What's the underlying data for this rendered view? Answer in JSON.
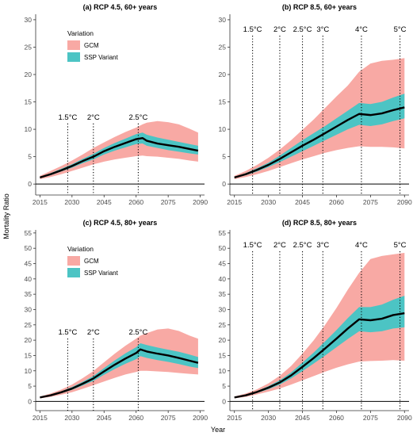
{
  "axis_titles": {
    "y": "Mortality Ratio",
    "x": "Year"
  },
  "legend": {
    "title": "Variation",
    "items": [
      {
        "label": "GCM",
        "color": "#F8A9A4"
      },
      {
        "label": "SSP Variant",
        "color": "#4CC4C4"
      }
    ]
  },
  "colors": {
    "gcm_band": "#F8A9A4",
    "ssp_band": "#4CC4C4",
    "median_line": "#000000"
  },
  "chart_data": [
    {
      "type": "area",
      "title": "(a) RCP 4.5, 60+ years",
      "xlabel": "",
      "ylabel": "Mortality Ratio",
      "xlim": [
        2013,
        2092
      ],
      "ylim": [
        -2,
        31
      ],
      "x_ticks": [
        2015,
        2030,
        2045,
        2060,
        2075,
        2090
      ],
      "y_ticks": [
        0,
        5,
        10,
        15,
        20,
        25,
        30
      ],
      "legend": true,
      "warming_markers": [
        {
          "label": "1.5°C",
          "year": 2028
        },
        {
          "label": "2°C",
          "year": 2040
        },
        {
          "label": "2.5°C",
          "year": 2061
        }
      ],
      "x": [
        2015,
        2020,
        2025,
        2030,
        2035,
        2040,
        2045,
        2050,
        2055,
        2060,
        2063,
        2065,
        2070,
        2075,
        2080,
        2085,
        2089
      ],
      "series": [
        {
          "name": "Median",
          "values": [
            1.2,
            1.8,
            2.5,
            3.3,
            4.2,
            5.0,
            6.0,
            6.8,
            7.5,
            8.2,
            8.4,
            7.9,
            7.4,
            7.1,
            6.8,
            6.4,
            6.1
          ]
        },
        {
          "name": "SSP Variant lower",
          "values": [
            1.1,
            1.6,
            2.3,
            3.0,
            3.8,
            4.5,
            5.4,
            6.1,
            6.7,
            7.3,
            7.4,
            7.0,
            6.6,
            6.2,
            5.9,
            5.6,
            5.4
          ]
        },
        {
          "name": "SSP Variant upper",
          "values": [
            1.3,
            2.0,
            2.8,
            3.6,
            4.6,
            5.5,
            6.6,
            7.5,
            8.3,
            9.1,
            9.4,
            9.0,
            8.5,
            8.1,
            7.7,
            7.3,
            7.0
          ]
        },
        {
          "name": "GCM lower",
          "values": [
            0.9,
            1.3,
            1.8,
            2.4,
            3.0,
            3.6,
            4.1,
            4.5,
            4.8,
            5.1,
            5.2,
            5.1,
            5.0,
            4.8,
            4.6,
            4.3,
            4.1
          ]
        },
        {
          "name": "GCM upper",
          "values": [
            1.5,
            2.4,
            3.3,
            4.3,
            5.4,
            6.6,
            7.6,
            8.6,
            9.5,
            10.3,
            10.9,
            11.2,
            11.5,
            11.3,
            10.9,
            10.1,
            9.4
          ]
        }
      ]
    },
    {
      "type": "area",
      "title": "(b) RCP 8.5, 60+ years",
      "xlabel": "",
      "ylabel": "",
      "xlim": [
        2013,
        2092
      ],
      "ylim": [
        -2,
        31
      ],
      "x_ticks": [
        2015,
        2030,
        2045,
        2060,
        2075,
        2090
      ],
      "y_ticks": [
        0,
        5,
        10,
        15,
        20,
        25,
        30
      ],
      "legend": false,
      "warming_markers": [
        {
          "label": "1.5°C",
          "year": 2023
        },
        {
          "label": "2°C",
          "year": 2035
        },
        {
          "label": "2.5°C",
          "year": 2045
        },
        {
          "label": "3°C",
          "year": 2054
        },
        {
          "label": "4°C",
          "year": 2071
        },
        {
          "label": "5°C",
          "year": 2088
        }
      ],
      "x": [
        2015,
        2020,
        2025,
        2030,
        2035,
        2040,
        2045,
        2050,
        2055,
        2060,
        2065,
        2070,
        2075,
        2080,
        2085,
        2090
      ],
      "series": [
        {
          "name": "Median",
          "values": [
            1.2,
            1.8,
            2.6,
            3.5,
            4.6,
            5.8,
            7.0,
            8.1,
            9.3,
            10.5,
            11.7,
            12.8,
            12.6,
            12.9,
            13.5,
            14.0
          ]
        },
        {
          "name": "SSP Variant lower",
          "values": [
            1.1,
            1.6,
            2.3,
            3.1,
            4.0,
            5.0,
            6.0,
            7.0,
            8.0,
            9.0,
            10.0,
            10.8,
            10.6,
            10.9,
            11.5,
            12.0
          ]
        },
        {
          "name": "SSP Variant upper",
          "values": [
            1.3,
            2.0,
            2.9,
            3.9,
            5.2,
            6.6,
            8.0,
            9.3,
            10.6,
            12.0,
            13.4,
            14.8,
            14.6,
            15.0,
            15.8,
            16.5
          ]
        },
        {
          "name": "GCM lower",
          "values": [
            0.9,
            1.3,
            1.8,
            2.4,
            3.1,
            3.8,
            4.5,
            5.1,
            5.7,
            6.2,
            6.6,
            6.9,
            6.8,
            6.8,
            6.7,
            6.5
          ]
        },
        {
          "name": "GCM upper",
          "values": [
            1.5,
            2.4,
            3.5,
            4.8,
            6.3,
            8.0,
            9.9,
            11.8,
            13.9,
            16.0,
            18.0,
            20.5,
            22.0,
            22.5,
            22.7,
            23.0
          ]
        }
      ]
    },
    {
      "type": "area",
      "title": "(c) RCP 4.5, 80+ years",
      "xlabel": "",
      "ylabel": "Mortality Ratio",
      "xlim": [
        2013,
        2092
      ],
      "ylim": [
        -3,
        56
      ],
      "x_ticks": [
        2015,
        2030,
        2045,
        2060,
        2075,
        2090
      ],
      "y_ticks": [
        0,
        5,
        10,
        15,
        20,
        25,
        30,
        35,
        40,
        45,
        50,
        55
      ],
      "legend": true,
      "warming_markers": [
        {
          "label": "1.5°C",
          "year": 2028
        },
        {
          "label": "2°C",
          "year": 2040
        },
        {
          "label": "2.5°C",
          "year": 2061
        }
      ],
      "x": [
        2015,
        2020,
        2025,
        2030,
        2035,
        2040,
        2045,
        2050,
        2055,
        2060,
        2062,
        2065,
        2070,
        2075,
        2080,
        2085,
        2089
      ],
      "series": [
        {
          "name": "Median",
          "values": [
            1.3,
            2.0,
            3.0,
            4.2,
            5.8,
            7.5,
            9.8,
            12.0,
            14.0,
            15.8,
            17.0,
            16.3,
            15.6,
            15.0,
            14.2,
            13.3,
            12.6
          ]
        },
        {
          "name": "SSP Variant lower",
          "values": [
            1.2,
            1.8,
            2.7,
            3.8,
            5.2,
            6.7,
            8.7,
            10.6,
            12.3,
            13.8,
            14.8,
            14.2,
            13.5,
            12.9,
            12.2,
            11.4,
            10.9
          ]
        },
        {
          "name": "SSP Variant upper",
          "values": [
            1.4,
            2.2,
            3.3,
            4.7,
            6.4,
            8.3,
            10.9,
            13.4,
            15.7,
            17.7,
            19.0,
            18.4,
            17.6,
            16.9,
            16.2,
            15.3,
            14.5
          ]
        },
        {
          "name": "GCM lower",
          "values": [
            1.0,
            1.5,
            2.2,
            3.0,
            4.1,
            5.3,
            6.5,
            7.7,
            8.8,
            9.6,
            10.0,
            10.0,
            9.8,
            9.6,
            9.3,
            9.0,
            8.8
          ]
        },
        {
          "name": "GCM upper",
          "values": [
            1.6,
            2.6,
            3.9,
            5.5,
            7.6,
            9.9,
            12.8,
            15.6,
            18.2,
            20.5,
            21.5,
            22.3,
            23.5,
            23.8,
            23.0,
            21.5,
            20.5
          ]
        }
      ]
    },
    {
      "type": "area",
      "title": "(d) RCP 8.5, 80+ years",
      "xlabel": "",
      "ylabel": "",
      "xlim": [
        2013,
        2092
      ],
      "ylim": [
        -3,
        56
      ],
      "x_ticks": [
        2015,
        2030,
        2045,
        2060,
        2075,
        2090
      ],
      "y_ticks": [
        0,
        5,
        10,
        15,
        20,
        25,
        30,
        35,
        40,
        45,
        50,
        55
      ],
      "legend": false,
      "warming_markers": [
        {
          "label": "1.5°C",
          "year": 2023
        },
        {
          "label": "2°C",
          "year": 2035
        },
        {
          "label": "2.5°C",
          "year": 2045
        },
        {
          "label": "3°C",
          "year": 2054
        },
        {
          "label": "4°C",
          "year": 2071
        },
        {
          "label": "5°C",
          "year": 2088
        }
      ],
      "x": [
        2015,
        2020,
        2025,
        2030,
        2035,
        2040,
        2045,
        2050,
        2055,
        2060,
        2065,
        2070,
        2075,
        2080,
        2085,
        2090
      ],
      "series": [
        {
          "name": "Median",
          "values": [
            1.3,
            2.0,
            3.1,
            4.5,
            6.2,
            8.5,
            11.3,
            14.2,
            17.3,
            20.5,
            23.8,
            26.8,
            26.5,
            27.0,
            28.2,
            28.8
          ]
        },
        {
          "name": "SSP Variant lower",
          "values": [
            1.2,
            1.8,
            2.8,
            4.0,
            5.5,
            7.5,
            9.9,
            12.4,
            15.0,
            17.7,
            20.4,
            22.9,
            22.6,
            22.9,
            23.8,
            24.2
          ]
        },
        {
          "name": "SSP Variant upper",
          "values": [
            1.4,
            2.2,
            3.4,
            5.0,
            6.9,
            9.5,
            12.7,
            16.0,
            19.6,
            23.3,
            27.2,
            30.8,
            30.8,
            31.6,
            33.2,
            34.5
          ]
        },
        {
          "name": "GCM lower",
          "values": [
            1.0,
            1.5,
            2.3,
            3.2,
            4.2,
            5.5,
            6.9,
            8.3,
            9.7,
            11.0,
            12.1,
            13.0,
            13.2,
            13.3,
            13.5,
            13.3
          ]
        },
        {
          "name": "GCM upper",
          "values": [
            1.6,
            2.6,
            4.0,
            5.9,
            8.4,
            11.6,
            15.6,
            20.0,
            25.0,
            30.5,
            36.5,
            42.0,
            46.5,
            47.5,
            48.0,
            48.5
          ]
        }
      ]
    }
  ]
}
